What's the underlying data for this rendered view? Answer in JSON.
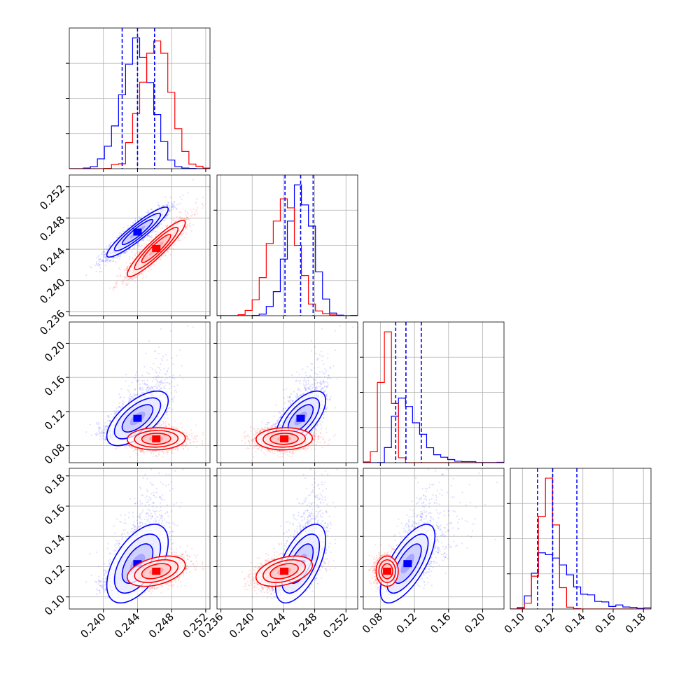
{
  "chart_data": {
    "type": "corner",
    "grid": true,
    "series_colors": {
      "series_a": "#0000ff",
      "series_b": "#ff0000"
    },
    "quantile_line_style": "dashed",
    "parameters": [
      {
        "range": [
          0.236,
          0.2525
        ],
        "tick_values": [
          0.24,
          0.244,
          0.248,
          0.252
        ],
        "tick_labels": [
          "0.240",
          "0.244",
          "0.248",
          "0.252"
        ]
      },
      {
        "range": [
          0.2355,
          0.2535
        ],
        "tick_values": [
          0.236,
          0.24,
          0.244,
          0.248,
          0.252
        ],
        "tick_labels": [
          "0.236",
          "0.240",
          "0.244",
          "0.248",
          "0.252"
        ]
      },
      {
        "range": [
          0.06,
          0.225
        ],
        "tick_values": [
          0.08,
          0.12,
          0.16,
          0.2
        ],
        "tick_labels": [
          "0.08",
          "0.12",
          "0.16",
          "0.20"
        ]
      },
      {
        "range": [
          0.092,
          0.185
        ],
        "tick_values": [
          0.1,
          0.12,
          0.14,
          0.16,
          0.18
        ],
        "tick_labels": [
          "0.10",
          "0.12",
          "0.14",
          "0.16",
          "0.18"
        ]
      }
    ],
    "series": [
      {
        "color": "#0000ff",
        "means": [
          0.244,
          0.2462,
          0.112,
          0.122
        ],
        "sigmas": [
          0.0018,
          0.0016,
          0.016,
          0.013
        ],
        "quantiles": [
          [
            0.2422,
            0.244,
            0.246
          ],
          [
            0.2442,
            0.2462,
            0.2478
          ],
          [
            0.098,
            0.11,
            0.128
          ],
          [
            0.11,
            0.12,
            0.136
          ]
        ],
        "correlations": {
          "0-1": 0.92,
          "0-2": 0.65,
          "0-3": 0.55,
          "1-2": 0.65,
          "1-3": 0.6,
          "2-3": 0.7
        }
      },
      {
        "color": "#ff0000",
        "means": [
          0.2462,
          0.2441,
          0.088,
          0.117
        ],
        "sigmas": [
          0.0017,
          0.0018,
          0.0065,
          0.005
        ],
        "correlations": {
          "0-1": 0.92,
          "0-2": 0.05,
          "0-3": 0.4,
          "1-2": 0.05,
          "1-3": 0.4,
          "2-3": 0.0
        }
      }
    ]
  }
}
